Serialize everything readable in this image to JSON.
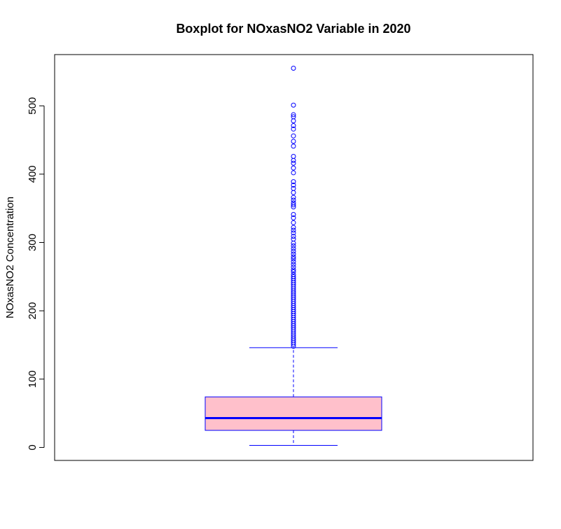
{
  "chart_data": {
    "type": "boxplot",
    "title": "Boxplot for NOxasNO2 Variable in 2020",
    "xlabel": "",
    "ylabel": "NOxasNO2 Concentration",
    "ylim": [
      -19,
      575
    ],
    "y_ticks": [
      0,
      100,
      200,
      300,
      400,
      500
    ],
    "grid": false,
    "box": {
      "min": 3,
      "q1": 25,
      "median": 43,
      "q3": 74,
      "whisker_high": 146,
      "fill_color": "#ffc0cb",
      "line_color": "#0000ff"
    },
    "outliers": [
      555,
      501,
      487,
      484,
      478,
      471,
      466,
      456,
      448,
      441,
      426,
      420,
      416,
      409,
      402,
      389,
      384,
      379,
      373,
      366,
      362,
      358,
      355,
      352,
      341,
      336,
      329,
      322,
      318,
      314,
      309,
      305,
      299,
      295,
      291,
      287,
      283,
      279,
      276,
      272,
      268,
      264,
      260,
      257,
      253,
      250,
      247,
      244,
      241,
      238,
      235,
      232,
      229,
      226,
      223,
      220,
      217,
      214,
      211,
      208,
      205,
      202,
      199,
      196,
      193,
      190,
      187,
      184,
      181,
      178,
      175,
      172,
      169,
      166,
      163,
      160,
      157,
      154,
      151,
      148
    ]
  }
}
